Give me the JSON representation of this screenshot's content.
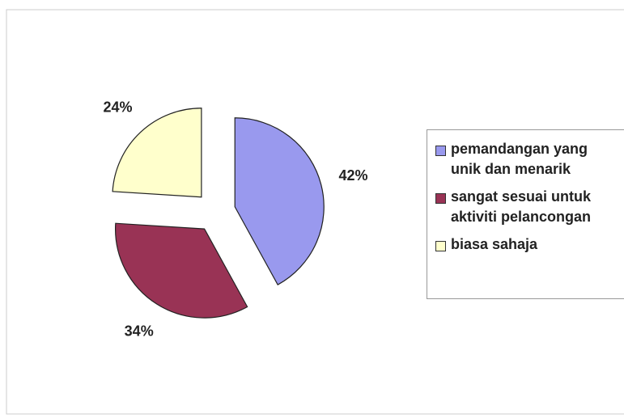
{
  "chart_data": {
    "type": "pie",
    "categories": [
      "pemandangan yang unik dan menarik",
      "sangat sesuai untuk aktiviti pelancongan",
      "biasa sahaja"
    ],
    "values": [
      42,
      34,
      24
    ],
    "value_labels": [
      "42%",
      "34%",
      "24%"
    ],
    "colors": [
      "#9999ee",
      "#993355",
      "#ffffcc"
    ],
    "legend": "right"
  }
}
